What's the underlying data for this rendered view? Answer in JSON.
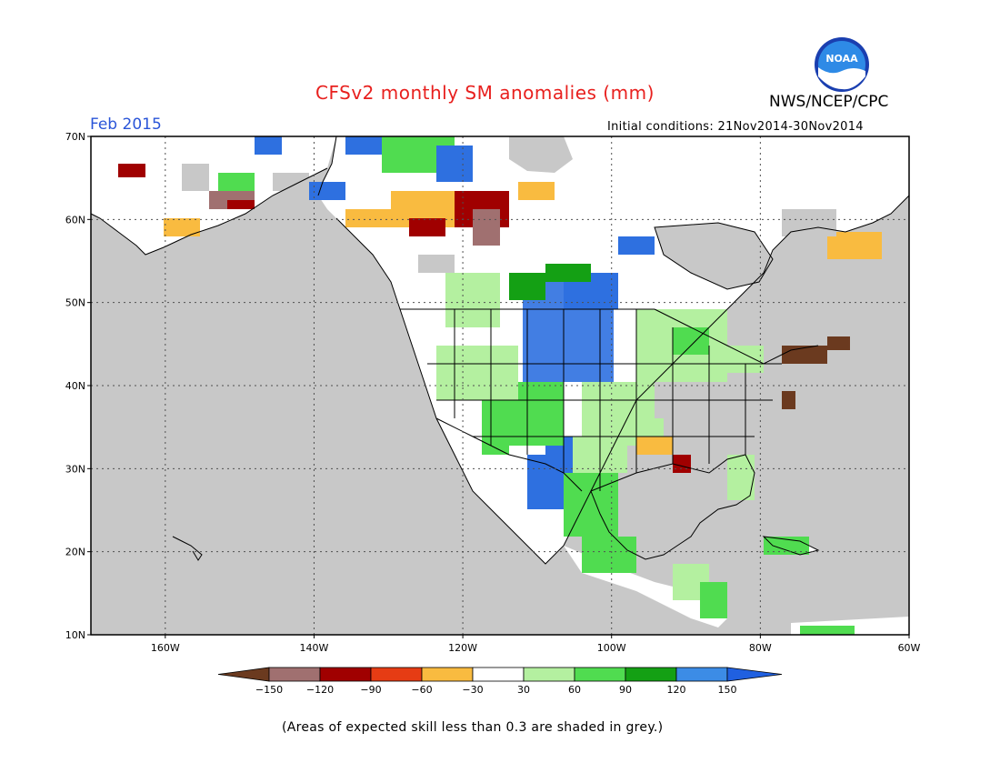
{
  "header": {
    "title": "CFSv2 monthly SM anomalies (mm)",
    "valid_month": "Feb 2015",
    "initial_conditions": "Initial conditions: 21Nov2014-30Nov2014",
    "agency": "NWS/NCEP/CPC",
    "logo_text": "NOAA"
  },
  "map": {
    "lat_labels": [
      "70N",
      "60N",
      "50N",
      "40N",
      "30N",
      "20N",
      "10N"
    ],
    "lon_labels": [
      "160W",
      "140W",
      "120W",
      "100W",
      "80W",
      "60W"
    ],
    "lon_range": [
      -170,
      -60
    ],
    "lat_range": [
      10,
      70
    ],
    "ocean_color": "#c8c8c8",
    "land_color": "#ffffff",
    "grid": true
  },
  "colorbar": {
    "tick_labels": [
      "-150",
      "-120",
      "-90",
      "-60",
      "-30",
      "30",
      "60",
      "90",
      "120",
      "150"
    ],
    "colors": [
      "#6b3a1f",
      "#a07070",
      "#a00000",
      "#e63c14",
      "#f9bb40",
      "#ffffff",
      "#b4f0a0",
      "#50dc50",
      "#14a014",
      "#3c8ce6",
      "#2060e0"
    ]
  },
  "footnote": "(Areas of expected skill less than 0.3 are shaded in grey.)"
}
